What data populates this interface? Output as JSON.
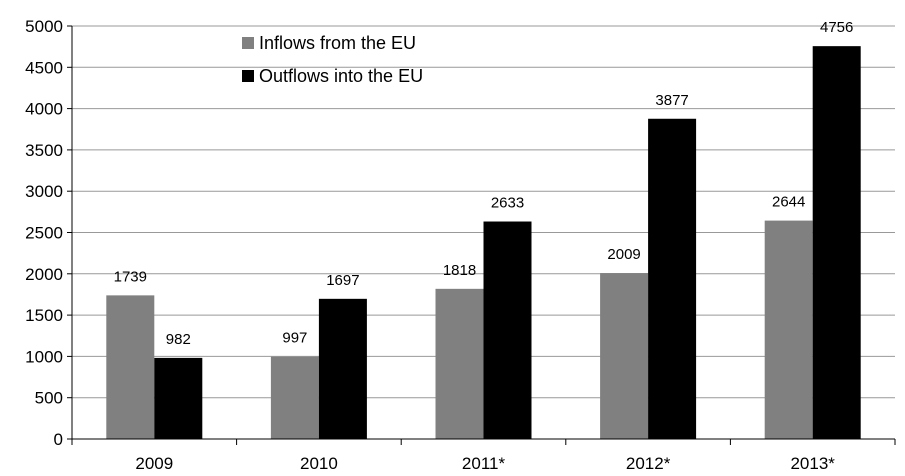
{
  "chart_data": {
    "type": "bar",
    "categories": [
      "2009",
      "2010",
      "2011*",
      "2012*",
      "2013*"
    ],
    "series": [
      {
        "name": "Inflows from the EU",
        "color": "#808080",
        "values": [
          1739,
          997,
          1818,
          2009,
          2644
        ],
        "labels": [
          "1739",
          "997",
          "1818",
          "2009",
          "2644"
        ]
      },
      {
        "name": "Outflows into the EU",
        "color": "#000000",
        "values": [
          982,
          1697,
          2633,
          3877,
          4756
        ],
        "labels": [
          "982",
          "1697",
          "2633",
          "3877",
          "4756"
        ]
      }
    ],
    "title": "",
    "xlabel": "",
    "ylabel": "",
    "ylim": [
      0,
      5000
    ],
    "yticks": [
      0,
      500,
      1000,
      1500,
      2000,
      2500,
      3000,
      3500,
      4000,
      4500,
      5000
    ],
    "ytick_labels": [
      "0",
      "500",
      "1000",
      "1500",
      "2000",
      "2500",
      "3000",
      "3500",
      "4000",
      "4500",
      "5000"
    ],
    "grid": true,
    "legend": "top-left",
    "colors": {
      "axis": "#000000",
      "grid": "#999999"
    }
  }
}
